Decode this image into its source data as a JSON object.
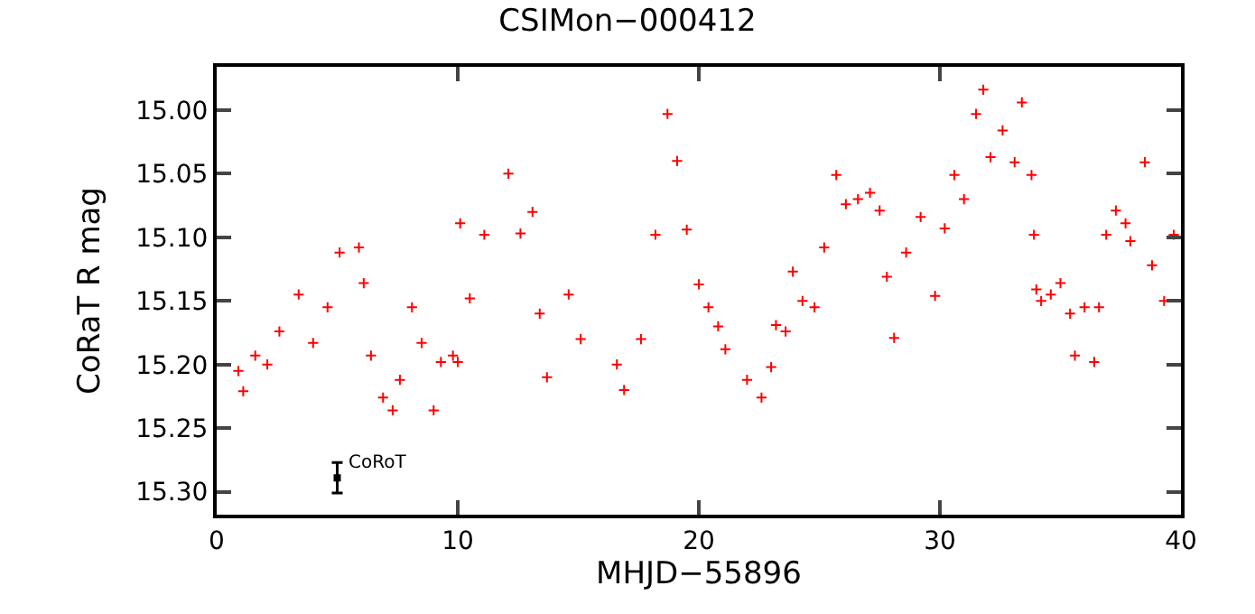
{
  "chart_data": {
    "type": "scatter",
    "title": "CSIMon−000412",
    "xlabel": "MHJD−55896",
    "ylabel": "CoRaT R mag",
    "xlim": [
      0,
      40
    ],
    "xticks": [
      0,
      10,
      20,
      30,
      40
    ],
    "ylim": [
      15.318,
      14.966
    ],
    "yticks": [
      {
        "value": 15.0,
        "label": "15.00"
      },
      {
        "value": 15.05,
        "label": "15.05"
      },
      {
        "value": 15.1,
        "label": "15.10"
      },
      {
        "value": 15.15,
        "label": "15.15"
      },
      {
        "value": 15.2,
        "label": "15.20"
      },
      {
        "value": 15.25,
        "label": "15.25"
      },
      {
        "value": 15.3,
        "label": "15.30"
      }
    ],
    "grid": false,
    "legend": false,
    "marker": "cross",
    "series": [
      {
        "color": "#ff0000",
        "x": [
          0.9,
          1.1,
          1.3,
          1.6,
          2.1,
          2.6,
          3.4,
          4.0,
          4.6,
          5.1,
          5.9,
          6.1,
          6.4,
          6.9,
          7.3,
          7.6,
          8.1,
          8.5,
          9.0,
          9.3,
          9.8,
          10.0,
          10.1,
          10.5,
          11.1,
          12.1,
          12.6,
          13.1,
          13.4,
          13.7,
          14.6,
          15.1,
          16.6,
          16.9,
          17.6,
          18.2,
          18.7,
          19.1,
          19.5,
          20.0,
          20.4,
          20.8,
          21.1,
          21.5,
          22.0,
          22.6,
          23.0,
          23.2,
          23.6,
          23.9,
          24.3,
          24.8,
          25.2,
          25.7,
          26.1,
          26.6,
          27.1,
          27.5,
          27.8,
          28.1,
          28.6,
          29.2,
          29.8,
          30.2,
          30.6,
          31.0,
          31.5,
          31.8,
          32.1,
          32.6,
          33.1,
          33.4,
          33.8,
          33.9,
          34.0,
          34.2,
          34.6,
          35.0,
          35.4,
          35.6,
          36.0,
          36.4,
          36.6,
          36.9,
          37.3,
          37.7,
          37.9,
          38.5,
          38.8,
          39.3,
          39.7
        ],
        "values": [
          15.205,
          15.221,
          null,
          15.193,
          15.2,
          15.174,
          15.145,
          15.183,
          15.155,
          15.112,
          15.108,
          15.136,
          15.193,
          15.226,
          15.236,
          15.212,
          15.155,
          15.183,
          15.236,
          15.198,
          15.193,
          15.198,
          15.089,
          15.148,
          15.098,
          15.05,
          15.097,
          15.08,
          15.16,
          15.21,
          15.145,
          15.18,
          15.2,
          15.22,
          15.18,
          15.098,
          15.003,
          15.04,
          15.094,
          15.137,
          15.155,
          15.17,
          15.188,
          null,
          15.212,
          15.226,
          15.202,
          15.169,
          15.174,
          15.127,
          15.15,
          15.155,
          15.108,
          15.051,
          15.074,
          15.07,
          15.065,
          15.079,
          15.131,
          15.179,
          15.112,
          15.084,
          15.146,
          15.093,
          15.051,
          15.07,
          15.003,
          14.984,
          15.037,
          15.016,
          15.041,
          14.994,
          15.051,
          15.098,
          15.141,
          15.15,
          15.145,
          15.136,
          15.16,
          15.193,
          15.155,
          15.198,
          15.155,
          15.098,
          15.079,
          15.089,
          15.103,
          15.041,
          15.122,
          15.15,
          15.098
        ]
      },
      {
        "name": "CoRoT",
        "color": "#000000",
        "marker": "square",
        "x": [
          5.0
        ],
        "values": [
          15.289
        ],
        "errors": [
          0.012
        ]
      }
    ]
  }
}
